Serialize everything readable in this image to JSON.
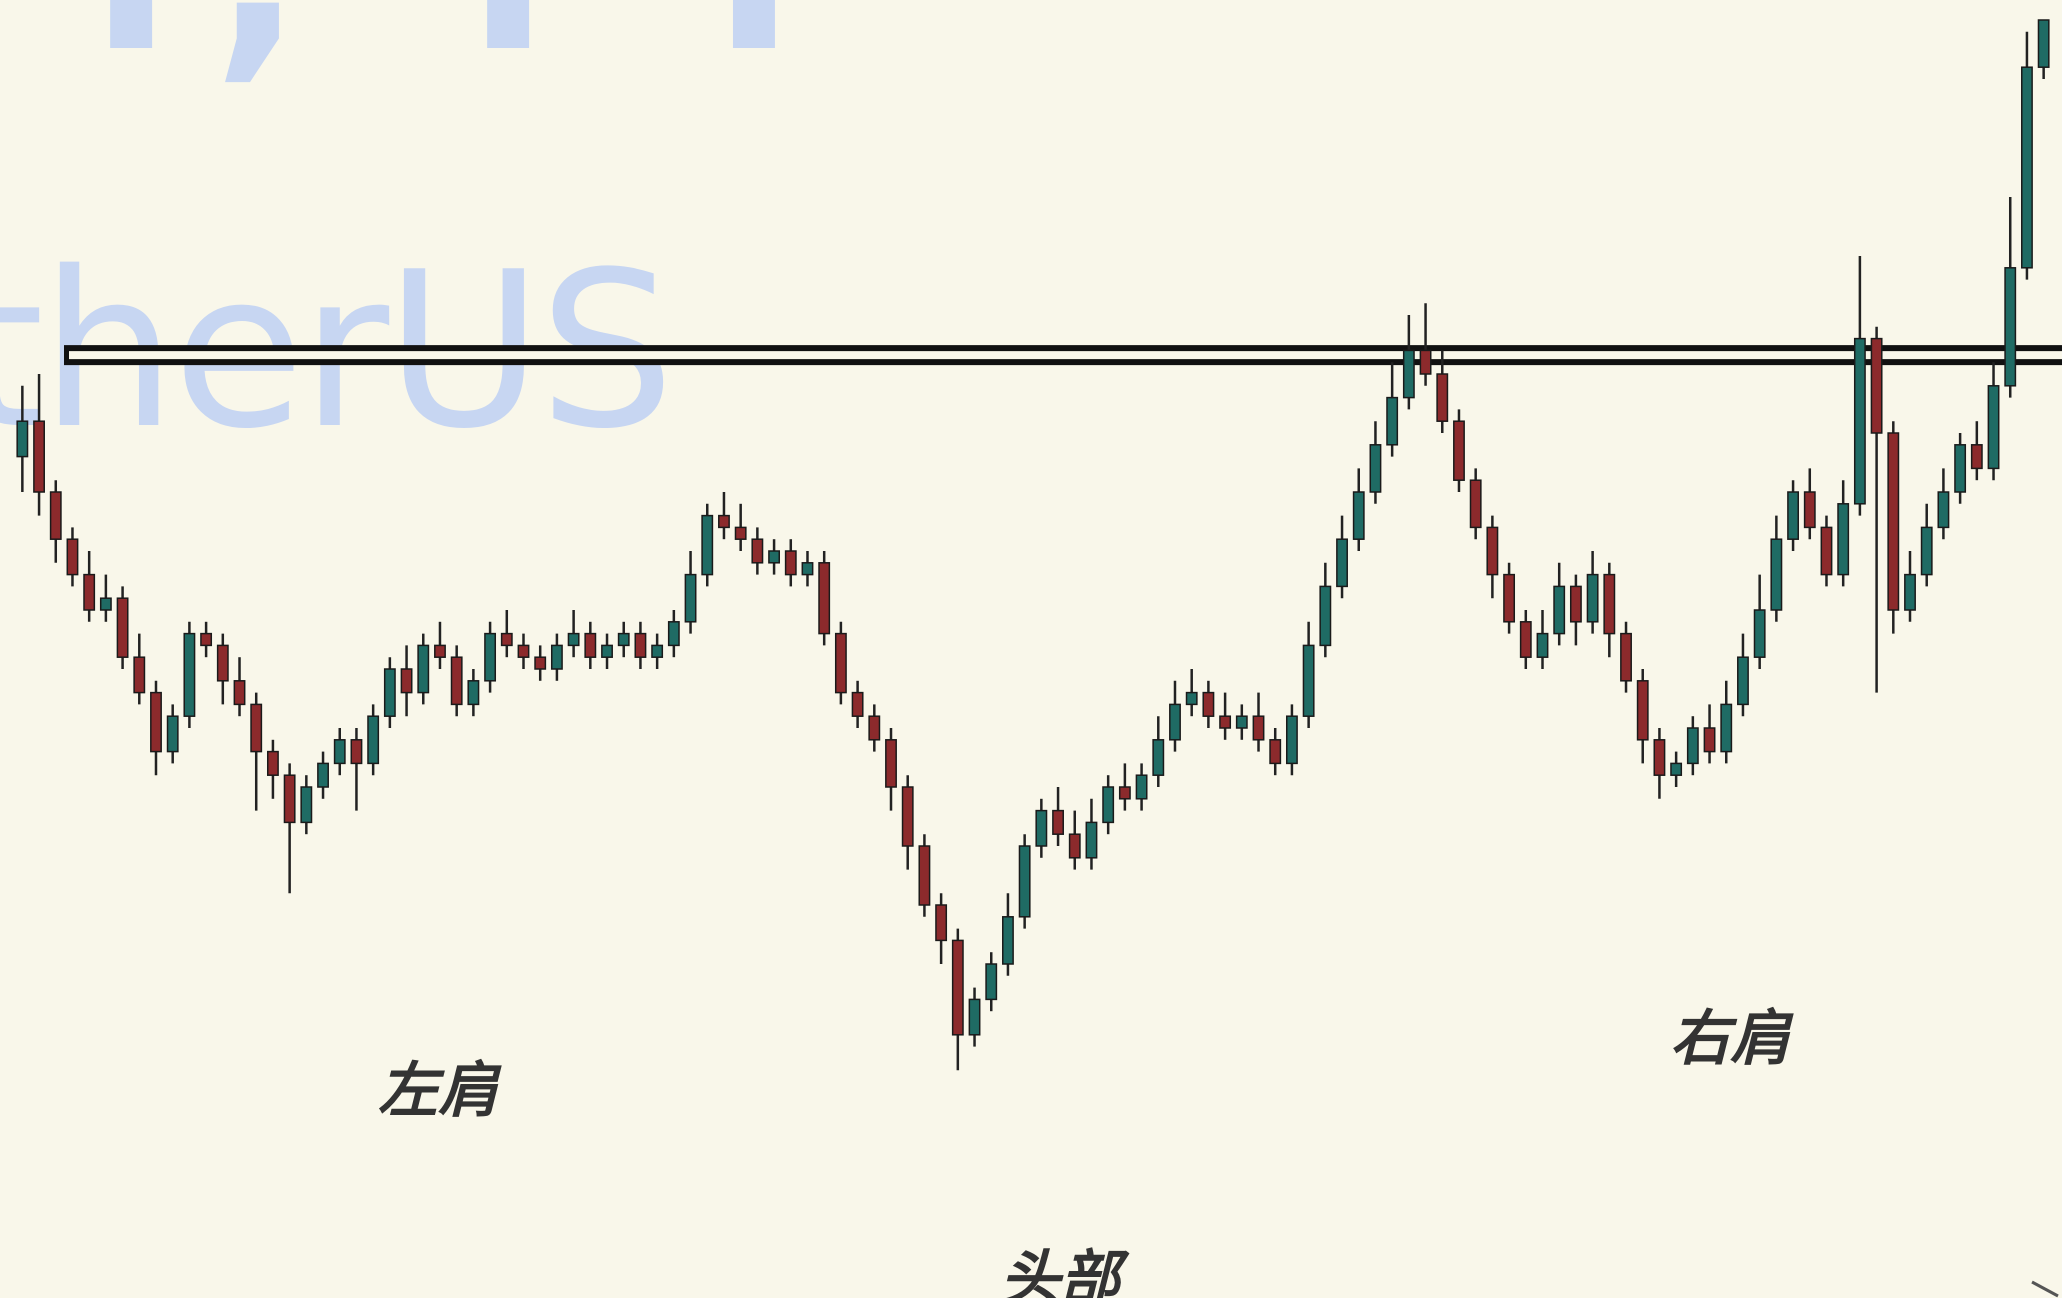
{
  "watermark": {
    "top_fragment": "ı, ı ı",
    "brand_fragment": "therUS",
    "color": "#c7d6f2"
  },
  "annotations": {
    "left_shoulder": "左肩",
    "head": "头部",
    "right_shoulder": "右肩"
  },
  "colors": {
    "background": "#f9f7ea",
    "up": "#1f6b64",
    "down": "#8c2a2c",
    "neckline": "#111111"
  },
  "chart_data": {
    "type": "candlestick",
    "pattern": "inverse head and shoulders",
    "title": "",
    "xlabel": "",
    "ylabel": "",
    "axes_visible": false,
    "grid": false,
    "ylim": [
      0,
      100
    ],
    "neckline": 71.6,
    "ohlc": [
      [
        63,
        66,
        60,
        69
      ],
      [
        66,
        60,
        58,
        70
      ],
      [
        60,
        56,
        54,
        61
      ],
      [
        56,
        53,
        52,
        57
      ],
      [
        53,
        50,
        49,
        55
      ],
      [
        50,
        51,
        49,
        53
      ],
      [
        51,
        46,
        45,
        52
      ],
      [
        46,
        43,
        42,
        48
      ],
      [
        43,
        38,
        36,
        44
      ],
      [
        38,
        41,
        37,
        42
      ],
      [
        41,
        48,
        40,
        49
      ],
      [
        48,
        47,
        46,
        49
      ],
      [
        47,
        44,
        42,
        48
      ],
      [
        44,
        42,
        41,
        46
      ],
      [
        42,
        38,
        33,
        43
      ],
      [
        38,
        36,
        34,
        39
      ],
      [
        36,
        32,
        26,
        37
      ],
      [
        32,
        35,
        31,
        36
      ],
      [
        35,
        37,
        34,
        38
      ],
      [
        37,
        39,
        36,
        40
      ],
      [
        39,
        37,
        33,
        40
      ],
      [
        37,
        41,
        36,
        42
      ],
      [
        41,
        45,
        40,
        46
      ],
      [
        45,
        43,
        41,
        47
      ],
      [
        43,
        47,
        42,
        48
      ],
      [
        47,
        46,
        45,
        49
      ],
      [
        46,
        42,
        41,
        47
      ],
      [
        42,
        44,
        41,
        45
      ],
      [
        44,
        48,
        43,
        49
      ],
      [
        48,
        47,
        46,
        50
      ],
      [
        47,
        46,
        45,
        48
      ],
      [
        46,
        45,
        44,
        47
      ],
      [
        45,
        47,
        44,
        48
      ],
      [
        47,
        48,
        46,
        50
      ],
      [
        48,
        46,
        45,
        49
      ],
      [
        46,
        47,
        45,
        48
      ],
      [
        47,
        48,
        46,
        49
      ],
      [
        48,
        46,
        45,
        49
      ],
      [
        46,
        47,
        45,
        48
      ],
      [
        47,
        49,
        46,
        50
      ],
      [
        49,
        53,
        48,
        55
      ],
      [
        53,
        58,
        52,
        59
      ],
      [
        58,
        57,
        56,
        60
      ],
      [
        57,
        56,
        55,
        59
      ],
      [
        56,
        54,
        53,
        57
      ],
      [
        54,
        55,
        53,
        56
      ],
      [
        55,
        53,
        52,
        56
      ],
      [
        53,
        54,
        52,
        55
      ],
      [
        54,
        48,
        47,
        55
      ],
      [
        48,
        43,
        42,
        49
      ],
      [
        43,
        41,
        40,
        44
      ],
      [
        41,
        39,
        38,
        42
      ],
      [
        39,
        35,
        33,
        40
      ],
      [
        35,
        30,
        28,
        36
      ],
      [
        30,
        25,
        24,
        31
      ],
      [
        25,
        22,
        20,
        26
      ],
      [
        22,
        14,
        11,
        23
      ],
      [
        14,
        17,
        13,
        18
      ],
      [
        17,
        20,
        16,
        21
      ],
      [
        20,
        24,
        19,
        26
      ],
      [
        24,
        30,
        23,
        31
      ],
      [
        30,
        33,
        29,
        34
      ],
      [
        33,
        31,
        30,
        35
      ],
      [
        31,
        29,
        28,
        33
      ],
      [
        29,
        32,
        28,
        34
      ],
      [
        32,
        35,
        31,
        36
      ],
      [
        35,
        34,
        33,
        37
      ],
      [
        34,
        36,
        33,
        37
      ],
      [
        36,
        39,
        35,
        41
      ],
      [
        39,
        42,
        38,
        44
      ],
      [
        42,
        43,
        41,
        45
      ],
      [
        43,
        41,
        40,
        44
      ],
      [
        41,
        40,
        39,
        43
      ],
      [
        40,
        41,
        39,
        42
      ],
      [
        41,
        39,
        38,
        43
      ],
      [
        39,
        37,
        36,
        40
      ],
      [
        37,
        41,
        36,
        42
      ],
      [
        41,
        47,
        40,
        49
      ],
      [
        47,
        52,
        46,
        54
      ],
      [
        52,
        56,
        51,
        58
      ],
      [
        56,
        60,
        55,
        62
      ],
      [
        60,
        64,
        59,
        66
      ],
      [
        64,
        68,
        63,
        71
      ],
      [
        68,
        72,
        67,
        75
      ],
      [
        72,
        70,
        69,
        76
      ],
      [
        70,
        66,
        65,
        72
      ],
      [
        66,
        61,
        60,
        67
      ],
      [
        61,
        57,
        56,
        62
      ],
      [
        57,
        53,
        51,
        58
      ],
      [
        53,
        49,
        48,
        54
      ],
      [
        49,
        46,
        45,
        50
      ],
      [
        46,
        48,
        45,
        50
      ],
      [
        48,
        52,
        47,
        54
      ],
      [
        52,
        49,
        47,
        53
      ],
      [
        49,
        53,
        48,
        55
      ],
      [
        53,
        48,
        46,
        54
      ],
      [
        48,
        44,
        43,
        49
      ],
      [
        44,
        39,
        37,
        45
      ],
      [
        39,
        36,
        34,
        40
      ],
      [
        36,
        37,
        35,
        38
      ],
      [
        37,
        40,
        36,
        41
      ],
      [
        40,
        38,
        37,
        42
      ],
      [
        38,
        42,
        37,
        44
      ],
      [
        42,
        46,
        41,
        48
      ],
      [
        46,
        50,
        45,
        53
      ],
      [
        50,
        56,
        49,
        58
      ],
      [
        56,
        60,
        55,
        61
      ],
      [
        60,
        57,
        56,
        62
      ],
      [
        57,
        53,
        52,
        58
      ],
      [
        53,
        59,
        52,
        61
      ],
      [
        59,
        73,
        58,
        80
      ],
      [
        73,
        65,
        43,
        74
      ],
      [
        65,
        50,
        48,
        66
      ],
      [
        50,
        53,
        49,
        55
      ],
      [
        53,
        57,
        52,
        59
      ],
      [
        57,
        60,
        56,
        62
      ],
      [
        60,
        64,
        59,
        65
      ],
      [
        64,
        62,
        61,
        66
      ],
      [
        62,
        69,
        61,
        71
      ],
      [
        69,
        79,
        68,
        85
      ],
      [
        79,
        96,
        78,
        99
      ],
      [
        96,
        100,
        95,
        100
      ]
    ]
  }
}
